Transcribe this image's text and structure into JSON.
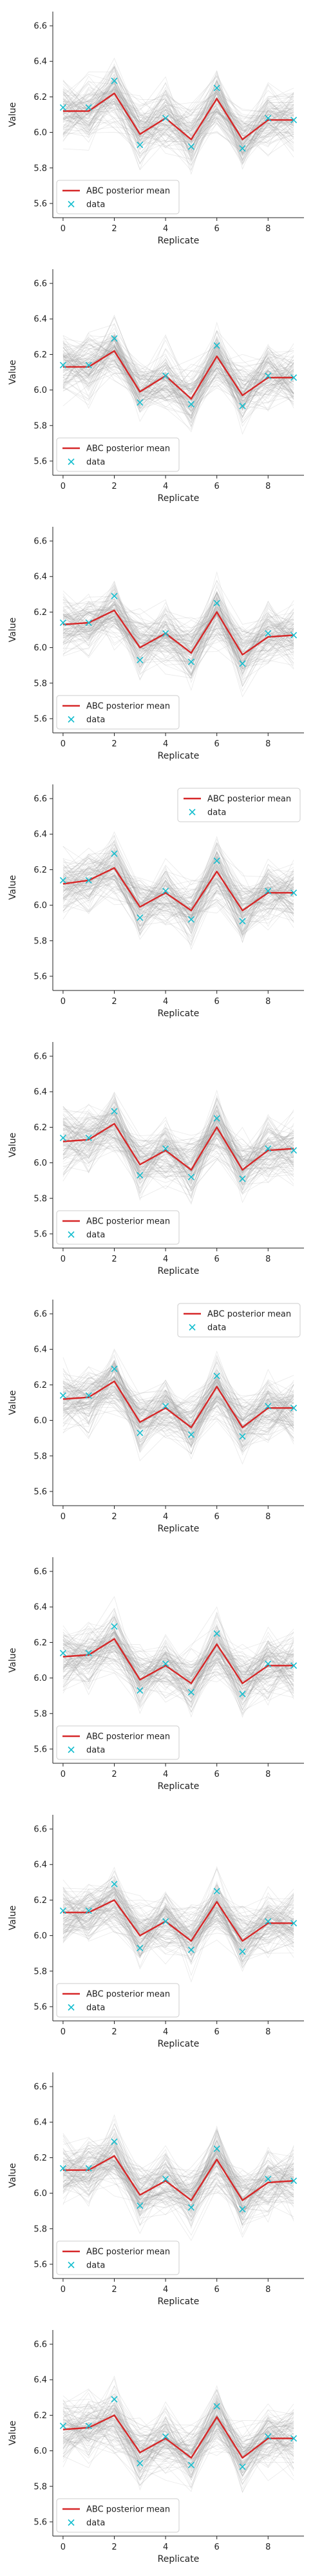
{
  "colors": {
    "mean_line": "#d62728",
    "data_marker": "#17becf",
    "samples": "#9a9a9a",
    "axis": "#222222"
  },
  "chart_data": [
    {
      "type": "line",
      "xlabel": "Replicate",
      "ylabel": "Value",
      "x": [
        0,
        1,
        2,
        3,
        4,
        5,
        6,
        7,
        8,
        9
      ],
      "xticks": [
        0,
        2,
        4,
        6,
        8
      ],
      "yticks": [
        "5.6",
        "5.8",
        "6.0",
        "6.2",
        "6.4",
        "6.6"
      ],
      "ylim": [
        5.52,
        6.68
      ],
      "xlim": [
        -0.4,
        9.4
      ],
      "grid": false,
      "legend_position": "lower-left",
      "series": [
        {
          "name": "ABC posterior mean",
          "marker": "line",
          "values": [
            6.12,
            6.12,
            6.22,
            5.99,
            6.08,
            5.96,
            6.19,
            5.96,
            6.07,
            6.07
          ]
        },
        {
          "name": "data",
          "marker": "x",
          "values": [
            6.14,
            6.14,
            6.29,
            5.93,
            6.08,
            5.92,
            6.25,
            5.91,
            6.08,
            6.07
          ]
        }
      ]
    },
    {
      "type": "line",
      "xlabel": "Replicate",
      "ylabel": "Value",
      "x": [
        0,
        1,
        2,
        3,
        4,
        5,
        6,
        7,
        8,
        9
      ],
      "xticks": [
        0,
        2,
        4,
        6,
        8
      ],
      "yticks": [
        "5.6",
        "5.8",
        "6.0",
        "6.2",
        "6.4",
        "6.6"
      ],
      "ylim": [
        5.52,
        6.68
      ],
      "xlim": [
        -0.4,
        9.4
      ],
      "grid": false,
      "legend_position": "lower-left",
      "series": [
        {
          "name": "ABC posterior mean",
          "marker": "line",
          "values": [
            6.13,
            6.13,
            6.22,
            5.99,
            6.08,
            5.95,
            6.19,
            5.97,
            6.07,
            6.07
          ]
        },
        {
          "name": "data",
          "marker": "x",
          "values": [
            6.14,
            6.14,
            6.29,
            5.93,
            6.08,
            5.92,
            6.25,
            5.91,
            6.08,
            6.07
          ]
        }
      ]
    },
    {
      "type": "line",
      "xlabel": "Replicate",
      "ylabel": "Value",
      "x": [
        0,
        1,
        2,
        3,
        4,
        5,
        6,
        7,
        8,
        9
      ],
      "xticks": [
        0,
        2,
        4,
        6,
        8
      ],
      "yticks": [
        "5.6",
        "5.8",
        "6.0",
        "6.2",
        "6.4",
        "6.6"
      ],
      "ylim": [
        5.52,
        6.68
      ],
      "xlim": [
        -0.4,
        9.4
      ],
      "grid": false,
      "legend_position": "lower-left",
      "series": [
        {
          "name": "ABC posterior mean",
          "marker": "line",
          "values": [
            6.13,
            6.14,
            6.21,
            6.0,
            6.08,
            5.97,
            6.2,
            5.96,
            6.06,
            6.07
          ]
        },
        {
          "name": "data",
          "marker": "x",
          "values": [
            6.14,
            6.14,
            6.29,
            5.93,
            6.08,
            5.92,
            6.25,
            5.91,
            6.08,
            6.07
          ]
        }
      ]
    },
    {
      "type": "line",
      "xlabel": "Replicate",
      "ylabel": "Value",
      "x": [
        0,
        1,
        2,
        3,
        4,
        5,
        6,
        7,
        8,
        9
      ],
      "xticks": [
        0,
        2,
        4,
        6,
        8
      ],
      "yticks": [
        "5.6",
        "5.8",
        "6.0",
        "6.2",
        "6.4",
        "6.6"
      ],
      "ylim": [
        5.52,
        6.68
      ],
      "xlim": [
        -0.4,
        9.4
      ],
      "grid": false,
      "legend_position": "upper-right",
      "series": [
        {
          "name": "ABC posterior mean",
          "marker": "line",
          "values": [
            6.12,
            6.14,
            6.21,
            5.99,
            6.07,
            5.97,
            6.19,
            5.97,
            6.07,
            6.07
          ]
        },
        {
          "name": "data",
          "marker": "x",
          "values": [
            6.14,
            6.14,
            6.29,
            5.93,
            6.08,
            5.92,
            6.25,
            5.91,
            6.08,
            6.07
          ]
        }
      ]
    },
    {
      "type": "line",
      "xlabel": "Replicate",
      "ylabel": "Value",
      "x": [
        0,
        1,
        2,
        3,
        4,
        5,
        6,
        7,
        8,
        9
      ],
      "xticks": [
        0,
        2,
        4,
        6,
        8
      ],
      "yticks": [
        "5.6",
        "5.8",
        "6.0",
        "6.2",
        "6.4",
        "6.6"
      ],
      "ylim": [
        5.52,
        6.68
      ],
      "xlim": [
        -0.4,
        9.4
      ],
      "grid": false,
      "legend_position": "lower-left",
      "series": [
        {
          "name": "ABC posterior mean",
          "marker": "line",
          "values": [
            6.12,
            6.13,
            6.22,
            5.99,
            6.07,
            5.96,
            6.2,
            5.96,
            6.07,
            6.08
          ]
        },
        {
          "name": "data",
          "marker": "x",
          "values": [
            6.14,
            6.14,
            6.29,
            5.93,
            6.08,
            5.92,
            6.25,
            5.91,
            6.08,
            6.07
          ]
        }
      ]
    },
    {
      "type": "line",
      "xlabel": "Replicate",
      "ylabel": "Value",
      "x": [
        0,
        1,
        2,
        3,
        4,
        5,
        6,
        7,
        8,
        9
      ],
      "xticks": [
        0,
        2,
        4,
        6,
        8
      ],
      "yticks": [
        "5.6",
        "5.8",
        "6.0",
        "6.2",
        "6.4",
        "6.6"
      ],
      "ylim": [
        5.52,
        6.68
      ],
      "xlim": [
        -0.4,
        9.4
      ],
      "grid": false,
      "legend_position": "upper-right",
      "series": [
        {
          "name": "ABC posterior mean",
          "marker": "line",
          "values": [
            6.12,
            6.13,
            6.22,
            5.99,
            6.07,
            5.96,
            6.19,
            5.96,
            6.07,
            6.07
          ]
        },
        {
          "name": "data",
          "marker": "x",
          "values": [
            6.14,
            6.14,
            6.29,
            5.93,
            6.08,
            5.92,
            6.25,
            5.91,
            6.08,
            6.07
          ]
        }
      ]
    },
    {
      "type": "line",
      "xlabel": "Replicate",
      "ylabel": "Value",
      "x": [
        0,
        1,
        2,
        3,
        4,
        5,
        6,
        7,
        8,
        9
      ],
      "xticks": [
        0,
        2,
        4,
        6,
        8
      ],
      "yticks": [
        "5.6",
        "5.8",
        "6.0",
        "6.2",
        "6.4",
        "6.6"
      ],
      "ylim": [
        5.52,
        6.68
      ],
      "xlim": [
        -0.4,
        9.4
      ],
      "grid": false,
      "legend_position": "lower-left",
      "series": [
        {
          "name": "ABC posterior mean",
          "marker": "line",
          "values": [
            6.12,
            6.13,
            6.22,
            5.99,
            6.07,
            5.97,
            6.19,
            5.97,
            6.07,
            6.07
          ]
        },
        {
          "name": "data",
          "marker": "x",
          "values": [
            6.14,
            6.14,
            6.29,
            5.93,
            6.08,
            5.92,
            6.25,
            5.91,
            6.08,
            6.07
          ]
        }
      ]
    },
    {
      "type": "line",
      "xlabel": "Replicate",
      "ylabel": "Value",
      "x": [
        0,
        1,
        2,
        3,
        4,
        5,
        6,
        7,
        8,
        9
      ],
      "xticks": [
        0,
        2,
        4,
        6,
        8
      ],
      "yticks": [
        "5.6",
        "5.8",
        "6.0",
        "6.2",
        "6.4",
        "6.6"
      ],
      "ylim": [
        5.52,
        6.68
      ],
      "xlim": [
        -0.4,
        9.4
      ],
      "grid": false,
      "legend_position": "lower-left",
      "series": [
        {
          "name": "ABC posterior mean",
          "marker": "line",
          "values": [
            6.13,
            6.13,
            6.2,
            6.0,
            6.08,
            5.97,
            6.19,
            5.97,
            6.07,
            6.07
          ]
        },
        {
          "name": "data",
          "marker": "x",
          "values": [
            6.14,
            6.14,
            6.29,
            5.93,
            6.08,
            5.92,
            6.25,
            5.91,
            6.08,
            6.07
          ]
        }
      ]
    },
    {
      "type": "line",
      "xlabel": "Replicate",
      "ylabel": "Value",
      "x": [
        0,
        1,
        2,
        3,
        4,
        5,
        6,
        7,
        8,
        9
      ],
      "xticks": [
        0,
        2,
        4,
        6,
        8
      ],
      "yticks": [
        "5.6",
        "5.8",
        "6.0",
        "6.2",
        "6.4",
        "6.6"
      ],
      "ylim": [
        5.52,
        6.68
      ],
      "xlim": [
        -0.4,
        9.4
      ],
      "grid": false,
      "legend_position": "lower-left",
      "series": [
        {
          "name": "ABC posterior mean",
          "marker": "line",
          "values": [
            6.13,
            6.13,
            6.21,
            5.99,
            6.07,
            5.96,
            6.19,
            5.96,
            6.06,
            6.07
          ]
        },
        {
          "name": "data",
          "marker": "x",
          "values": [
            6.14,
            6.14,
            6.29,
            5.93,
            6.08,
            5.92,
            6.25,
            5.91,
            6.08,
            6.07
          ]
        }
      ]
    },
    {
      "type": "line",
      "xlabel": "Replicate",
      "ylabel": "Value",
      "x": [
        0,
        1,
        2,
        3,
        4,
        5,
        6,
        7,
        8,
        9
      ],
      "xticks": [
        0,
        2,
        4,
        6,
        8
      ],
      "yticks": [
        "5.6",
        "5.8",
        "6.0",
        "6.2",
        "6.4",
        "6.6"
      ],
      "ylim": [
        5.52,
        6.68
      ],
      "xlim": [
        -0.4,
        9.4
      ],
      "grid": false,
      "legend_position": "lower-left",
      "series": [
        {
          "name": "ABC posterior mean",
          "marker": "line",
          "values": [
            6.12,
            6.13,
            6.2,
            5.99,
            6.07,
            5.96,
            6.19,
            5.96,
            6.07,
            6.07
          ]
        },
        {
          "name": "data",
          "marker": "x",
          "values": [
            6.14,
            6.14,
            6.29,
            5.93,
            6.08,
            5.92,
            6.25,
            5.91,
            6.08,
            6.07
          ]
        }
      ]
    }
  ]
}
